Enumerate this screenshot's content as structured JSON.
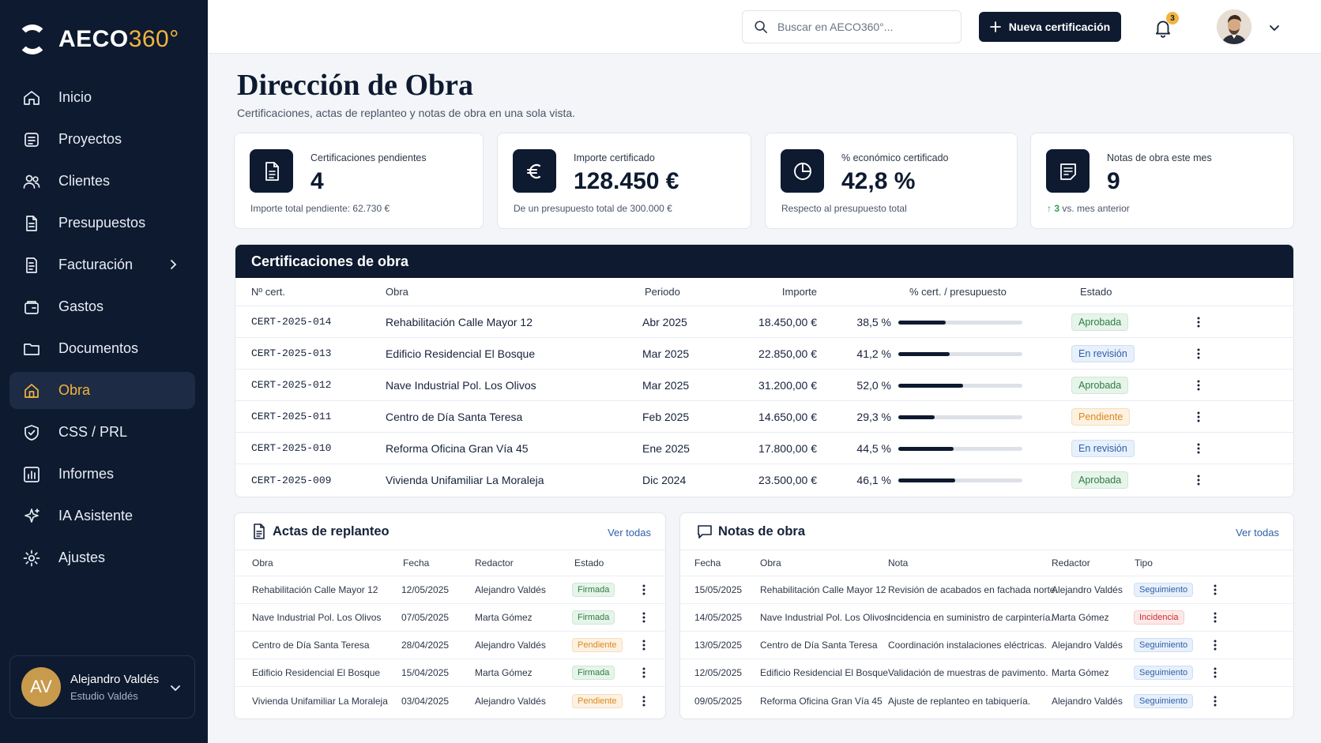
{
  "app": {
    "logo_main": "AECO",
    "logo_accent": "360°"
  },
  "sidebar": {
    "items": [
      {
        "label": "Inicio",
        "icon": "home-icon"
      },
      {
        "label": "Proyectos",
        "icon": "projects-icon"
      },
      {
        "label": "Clientes",
        "icon": "users-icon"
      },
      {
        "label": "Presupuestos",
        "icon": "document-icon"
      },
      {
        "label": "Facturación",
        "icon": "invoice-icon"
      },
      {
        "label": "Gastos",
        "icon": "wallet-icon"
      },
      {
        "label": "Documentos",
        "icon": "folder-icon"
      },
      {
        "label": "Obra",
        "icon": "building-icon"
      },
      {
        "label": "CSS / PRL",
        "icon": "shield-icon"
      },
      {
        "label": "Informes",
        "icon": "chart-icon"
      },
      {
        "label": "IA Asistente",
        "icon": "sparkle-icon"
      },
      {
        "label": "Ajustes",
        "icon": "gear-icon"
      }
    ],
    "active": "Obra",
    "user": {
      "initials": "AV",
      "name": "Alejandro Valdés",
      "org": "Estudio Valdés"
    }
  },
  "topbar": {
    "search_placeholder": "Buscar en AECO360°...",
    "new_button": "Nueva certificación",
    "notifications": "3"
  },
  "page": {
    "title": "Dirección de Obra",
    "subtitle": "Certificaciones, actas de replanteo y notas de obra en una sola vista."
  },
  "kpis": {
    "pending": {
      "label": "Certificaciones pendientes",
      "value": "4",
      "foot": "Importe total pendiente: 62.730 €"
    },
    "amount": {
      "label": "Importe certificado",
      "value": "128.450 €",
      "foot": "De un presupuesto total de 300.000 €"
    },
    "percent": {
      "label": "% económico certificado",
      "value": "42,8 %",
      "foot": "Respecto al presupuesto total"
    },
    "notes": {
      "label": "Notas de obra este mes",
      "value": "9",
      "foot_delta": "3",
      "foot_text": "vs. mes anterior"
    }
  },
  "certifications": {
    "title": "Certificaciones de obra",
    "headers": {
      "num": "Nº cert.",
      "obra": "Obra",
      "periodo": "Periodo",
      "importe": "Importe",
      "pct": "% cert. / presupuesto",
      "estado": "Estado"
    },
    "rows": [
      {
        "num": "CERT-2025-014",
        "obra": "Rehabilitación Calle Mayor 12",
        "periodo": "Abr 2025",
        "importe": "18.450,00 €",
        "pct_label": "38,5 %",
        "pct": 38.5,
        "estado": "Aprobada",
        "tone": "green"
      },
      {
        "num": "CERT-2025-013",
        "obra": "Edificio Residencial El Bosque",
        "periodo": "Mar 2025",
        "importe": "22.850,00 €",
        "pct_label": "41,2 %",
        "pct": 41.2,
        "estado": "En revisión",
        "tone": "blue"
      },
      {
        "num": "CERT-2025-012",
        "obra": "Nave Industrial Pol. Los Olivos",
        "periodo": "Mar 2025",
        "importe": "31.200,00 €",
        "pct_label": "52,0 %",
        "pct": 52.0,
        "estado": "Aprobada",
        "tone": "green"
      },
      {
        "num": "CERT-2025-011",
        "obra": "Centro de Día Santa Teresa",
        "periodo": "Feb 2025",
        "importe": "14.650,00 €",
        "pct_label": "29,3 %",
        "pct": 29.3,
        "estado": "Pendiente",
        "tone": "orange"
      },
      {
        "num": "CERT-2025-010",
        "obra": "Reforma Oficina Gran Vía 45",
        "periodo": "Ene 2025",
        "importe": "17.800,00 €",
        "pct_label": "44,5 %",
        "pct": 44.5,
        "estado": "En revisión",
        "tone": "blue"
      },
      {
        "num": "CERT-2025-009",
        "obra": "Vivienda Unifamiliar La Moraleja",
        "periodo": "Dic 2024",
        "importe": "23.500,00 €",
        "pct_label": "46,1 %",
        "pct": 46.1,
        "estado": "Aprobada",
        "tone": "green"
      }
    ]
  },
  "actas": {
    "title": "Actas de replanteo",
    "link": "Ver todas",
    "headers": {
      "obra": "Obra",
      "fecha": "Fecha",
      "redactor": "Redactor",
      "estado": "Estado"
    },
    "rows": [
      {
        "obra": "Rehabilitación Calle Mayor 12",
        "fecha": "12/05/2025",
        "redactor": "Alejandro Valdés",
        "estado": "Firmada",
        "tone": "green"
      },
      {
        "obra": "Nave Industrial Pol. Los Olivos",
        "fecha": "07/05/2025",
        "redactor": "Marta Gómez",
        "estado": "Firmada",
        "tone": "green"
      },
      {
        "obra": "Centro de Día Santa Teresa",
        "fecha": "28/04/2025",
        "redactor": "Alejandro Valdés",
        "estado": "Pendiente",
        "tone": "orange"
      },
      {
        "obra": "Edificio Residencial El Bosque",
        "fecha": "15/04/2025",
        "redactor": "Marta Gómez",
        "estado": "Firmada",
        "tone": "green"
      },
      {
        "obra": "Vivienda Unifamiliar La Moraleja",
        "fecha": "03/04/2025",
        "redactor": "Alejandro Valdés",
        "estado": "Pendiente",
        "tone": "orange"
      }
    ]
  },
  "notas": {
    "title": "Notas de obra",
    "link": "Ver todas",
    "headers": {
      "fecha": "Fecha",
      "obra": "Obra",
      "nota": "Nota",
      "redactor": "Redactor",
      "tipo": "Tipo"
    },
    "rows": [
      {
        "fecha": "15/05/2025",
        "obra": "Rehabilitación Calle Mayor 12",
        "nota": "Revisión de acabados en fachada norte.",
        "redactor": "Alejandro Valdés",
        "tipo": "Seguimiento",
        "tone": "blue"
      },
      {
        "fecha": "14/05/2025",
        "obra": "Nave Industrial Pol. Los Olivos",
        "nota": "Incidencia en suministro de carpintería.",
        "redactor": "Marta Gómez",
        "tipo": "Incidencia",
        "tone": "red"
      },
      {
        "fecha": "13/05/2025",
        "obra": "Centro de Día Santa Teresa",
        "nota": "Coordinación instalaciones eléctricas.",
        "redactor": "Alejandro Valdés",
        "tipo": "Seguimiento",
        "tone": "blue"
      },
      {
        "fecha": "12/05/2025",
        "obra": "Edificio Residencial El Bosque",
        "nota": "Validación de muestras de pavimento.",
        "redactor": "Marta Gómez",
        "tipo": "Seguimiento",
        "tone": "blue"
      },
      {
        "fecha": "09/05/2025",
        "obra": "Reforma Oficina Gran Vía 45",
        "nota": "Ajuste de replanteo en tabiquería.",
        "redactor": "Alejandro Valdés",
        "tipo": "Seguimiento",
        "tone": "blue"
      }
    ]
  },
  "colors": {
    "navy": "#0d1a30",
    "accent": "#f2b43f",
    "success": "#2f9e55"
  }
}
